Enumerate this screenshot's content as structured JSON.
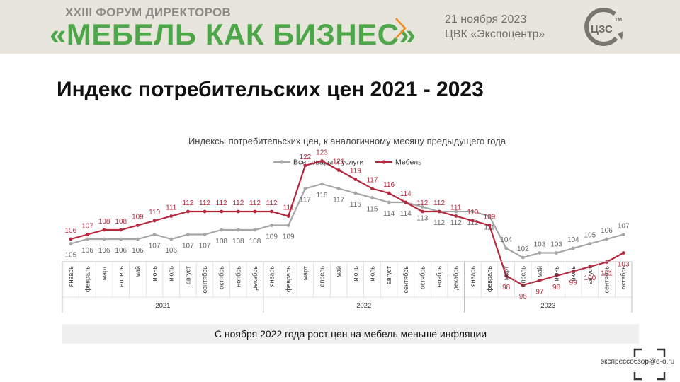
{
  "header": {
    "forum_line1": "XXIII ФОРУМ ДИРЕКТОРОВ",
    "forum_line2": "«МЕБЕЛЬ КАК БИЗНЕС»",
    "date": "21 ноября 2023",
    "place": "ЦВК «Экспоцентр»",
    "logo_text": "ЦЗС",
    "logo_tm": "TM"
  },
  "slide": {
    "title": "Индекс потребительских цен 2021 - 2023",
    "conclusion": "С ноября 2022 года рост цен на мебель меньше инфляции"
  },
  "watermark": {
    "text": "экспрессобзор@e-o.ru"
  },
  "colors": {
    "all_goods": "#a6a6a6",
    "furniture": "#b5283d",
    "brand_green": "#4ea64a"
  },
  "chart_data": {
    "type": "line",
    "title": "Индексы потребительских цен, к аналогичному месяцу предыдущего года",
    "legend_position": "top",
    "grid": false,
    "categories": [
      "январь",
      "февраль",
      "март",
      "апрель",
      "май",
      "июнь",
      "июль",
      "август",
      "сентябрь",
      "октябрь",
      "ноябрь",
      "декабрь",
      "январь",
      "февраль",
      "март",
      "апрель",
      "май",
      "июнь",
      "июль",
      "август",
      "сентябрь",
      "октябрь",
      "ноябрь",
      "декабрь",
      "январь",
      "февраль",
      "март",
      "апрель",
      "май",
      "июнь",
      "июль",
      "август",
      "сентябрь",
      "октябрь"
    ],
    "year_groups": [
      {
        "label": "2021",
        "count": 12
      },
      {
        "label": "2022",
        "count": 12
      },
      {
        "label": "2023",
        "count": 10
      }
    ],
    "ylim": [
      94,
      126
    ],
    "series": [
      {
        "name": "Все товары и услуги",
        "color": "#a6a6a6",
        "label_side": "below_until_30",
        "values": [
          105,
          106,
          106,
          106,
          106,
          107,
          106,
          107,
          107,
          108,
          108,
          108,
          109,
          109,
          117,
          118,
          117,
          116,
          115,
          114,
          114,
          113,
          112,
          112,
          112,
          111,
          104,
          102,
          103,
          103,
          104,
          105,
          106,
          107
        ]
      },
      {
        "name": "Мебель",
        "color": "#b5283d",
        "values": [
          106,
          107,
          108,
          108,
          109,
          110,
          111,
          112,
          112,
          112,
          112,
          112,
          112,
          111,
          122,
          123,
          121,
          119,
          117,
          116,
          114,
          112,
          112,
          111,
          110,
          109,
          98,
          96,
          97,
          98,
          99,
          100,
          101,
          103
        ]
      }
    ]
  }
}
